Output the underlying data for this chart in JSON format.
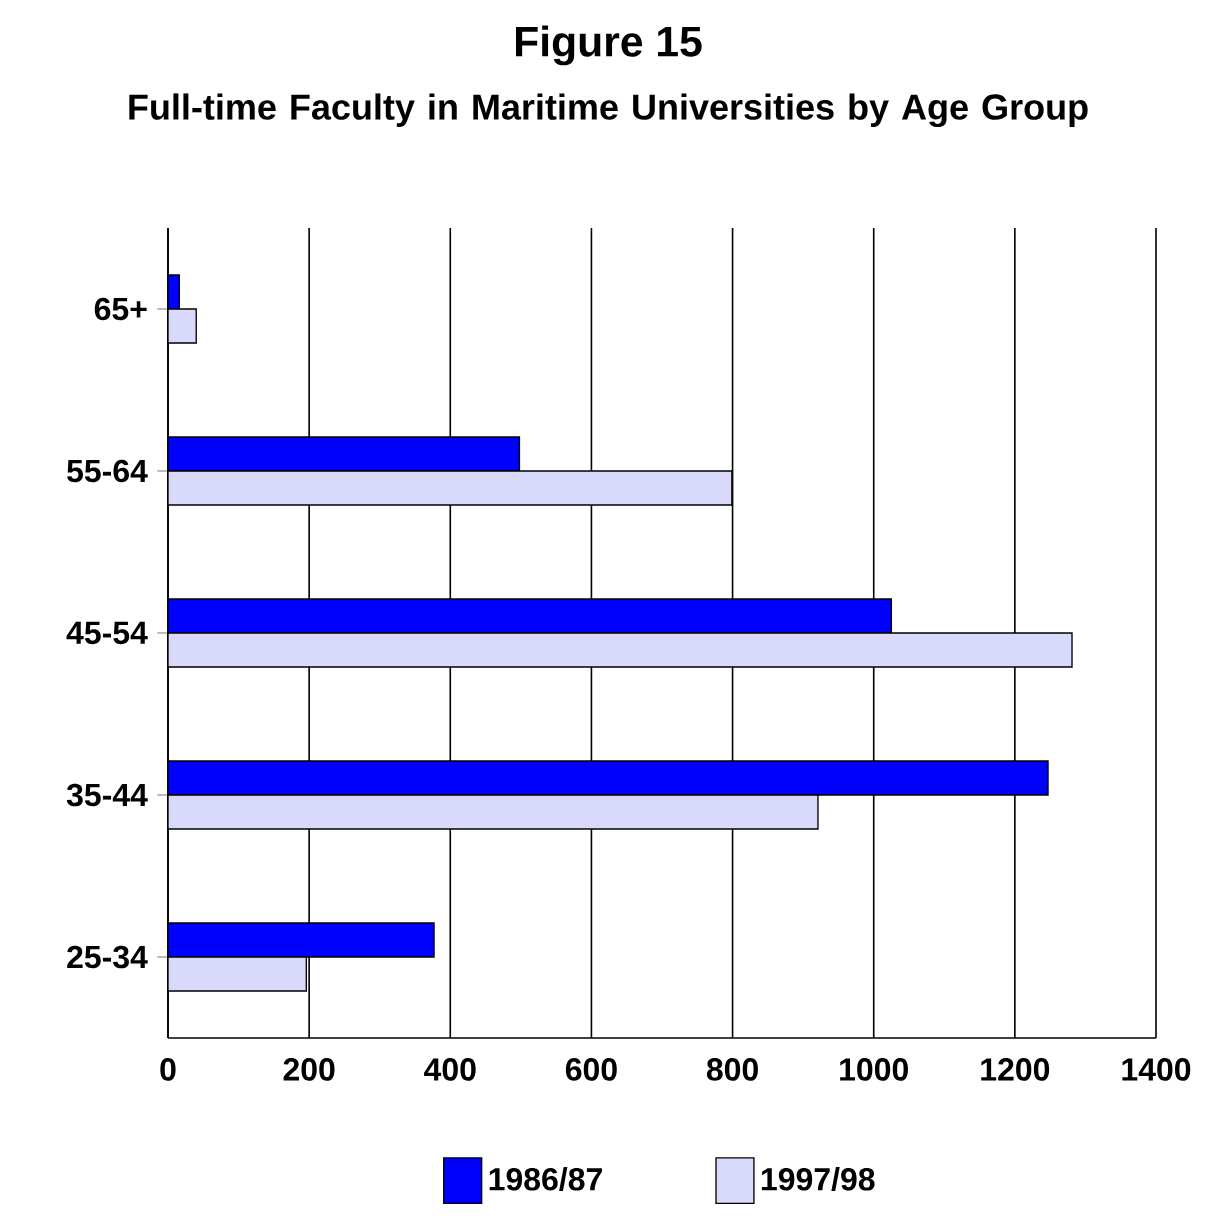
{
  "chart_data": {
    "type": "bar",
    "orientation": "horizontal",
    "title": "Figure 15",
    "subtitle": "Full-time Faculty in Maritime Universities by Age Group",
    "categories": [
      "65+",
      "55-64",
      "45-54",
      "35-44",
      "25-34"
    ],
    "series": [
      {
        "name": "1986/87",
        "color": "#0000ff",
        "values": [
          16,
          498,
          1025,
          1247,
          377
        ]
      },
      {
        "name": "1997/98",
        "color": "#d9d9fb",
        "values": [
          40,
          799,
          1281,
          921,
          196
        ]
      }
    ],
    "xlim": [
      0,
      1400
    ],
    "xticks": [
      0,
      200,
      400,
      600,
      800,
      1000,
      1200,
      1400
    ],
    "grid": "x",
    "legend": "bottom"
  }
}
